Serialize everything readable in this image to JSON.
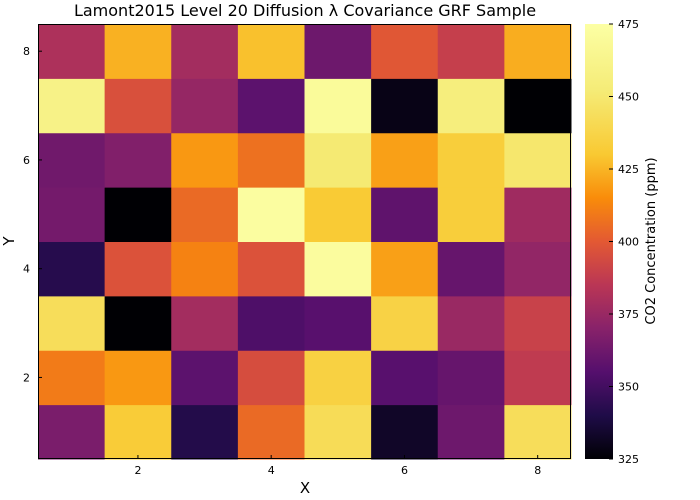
{
  "chart_data": {
    "type": "heatmap",
    "title": "Lamont2015 Level 20 Diffusion λ Covariance GRF Sample",
    "xlabel": "X",
    "ylabel": "Y",
    "colorbar_label": "CO2 Concentration (ppm)",
    "colormap": "inferno",
    "clim": [
      325,
      475
    ],
    "colorbar_ticks": [
      325,
      350,
      375,
      400,
      425,
      450,
      475
    ],
    "x": [
      1,
      2,
      3,
      4,
      5,
      6,
      7,
      8
    ],
    "y": [
      1,
      2,
      3,
      4,
      5,
      6,
      7,
      8
    ],
    "xticks": [
      2,
      4,
      6,
      8
    ],
    "yticks": [
      2,
      4,
      6,
      8
    ],
    "xlim": [
      0.5,
      8.5
    ],
    "ylim": [
      0.5,
      8.5
    ],
    "grid": false,
    "z": [
      [
        366,
        432,
        341,
        405,
        442,
        333,
        362,
        443
      ],
      [
        410,
        418,
        357,
        395,
        435,
        356,
        360,
        387
      ],
      [
        443,
        325,
        378,
        353,
        356,
        436,
        375,
        390
      ],
      [
        342,
        397,
        412,
        397,
        472,
        420,
        360,
        373
      ],
      [
        364,
        325,
        405,
        473,
        431,
        358,
        433,
        377
      ],
      [
        363,
        368,
        418,
        407,
        451,
        420,
        433,
        449
      ],
      [
        460,
        396,
        374,
        357,
        470,
        329,
        455,
        325
      ],
      [
        381,
        424,
        378,
        428,
        362,
        399,
        389,
        423
      ]
    ]
  }
}
